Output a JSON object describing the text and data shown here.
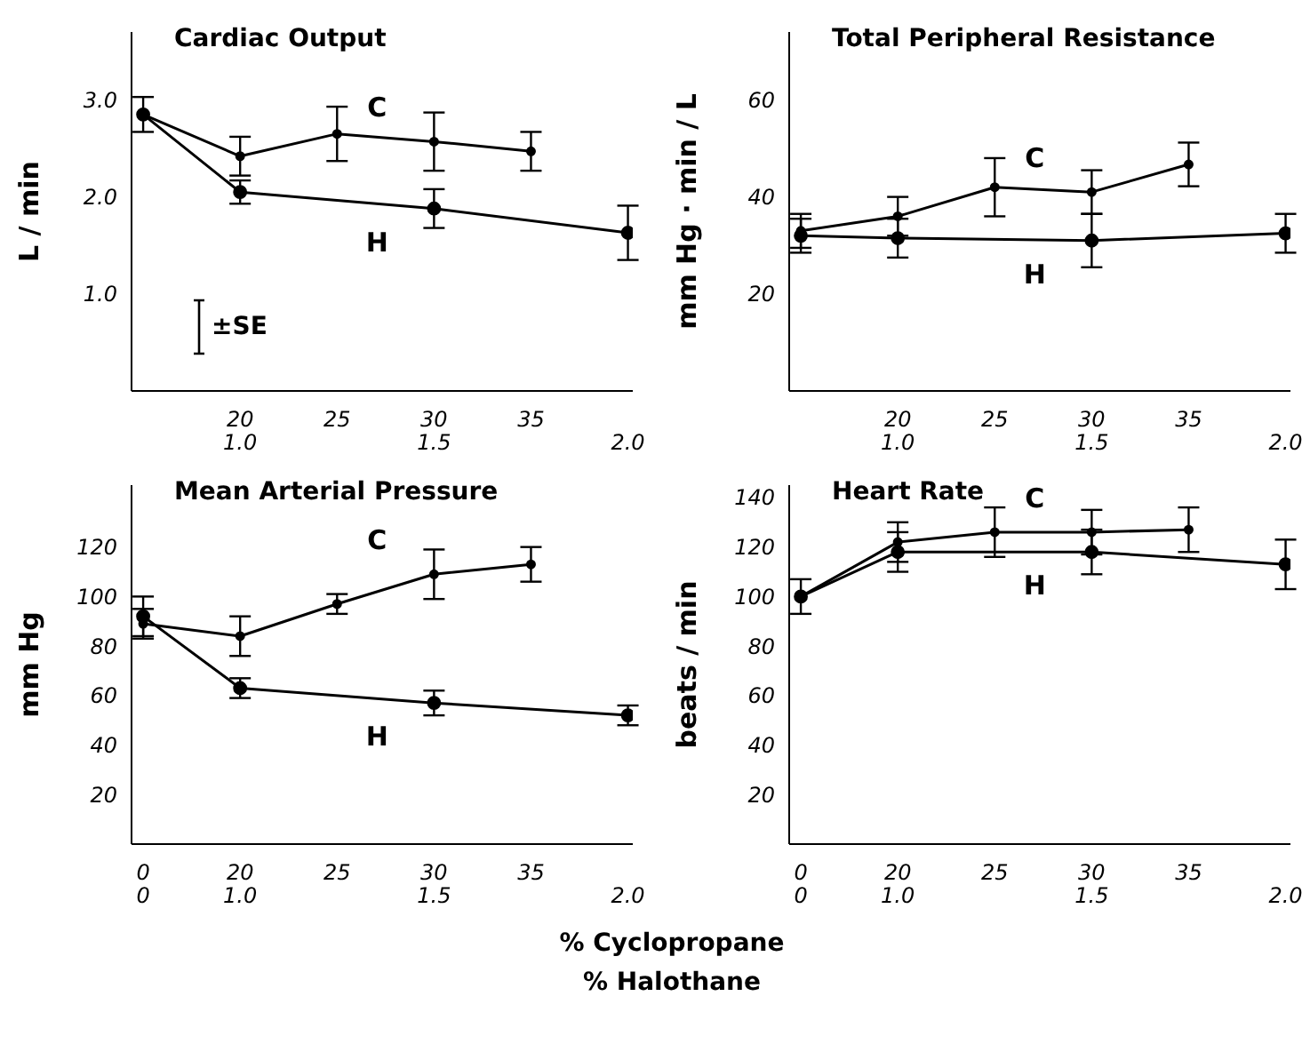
{
  "chart_data": [
    {
      "type": "line",
      "title": "Cardiac Output",
      "ylabel": "L / min",
      "categories": [
        null,
        "20\n1.0",
        "25",
        "30\n1.5",
        "35",
        "\n2.0"
      ],
      "ylim": [
        0,
        3.7
      ],
      "yticks": [
        {
          "value": 1,
          "label": "1.0"
        },
        {
          "value": 2,
          "label": "2.0"
        },
        {
          "value": 3,
          "label": "3.0"
        }
      ],
      "grid": false,
      "legend": false,
      "marker": "circle",
      "annotations": [
        "±SE"
      ],
      "series": [
        {
          "name": "C",
          "color": "#000000",
          "values": [
            2.85,
            2.42,
            2.65,
            2.57,
            2.47,
            null
          ],
          "errors": [
            0.18,
            0.2,
            0.28,
            0.3,
            0.2,
            null
          ]
        },
        {
          "name": "H",
          "color": "#000000",
          "values": [
            2.85,
            2.05,
            null,
            1.88,
            null,
            1.63
          ],
          "errors": [
            null,
            0.12,
            null,
            0.2,
            null,
            0.28
          ]
        }
      ]
    },
    {
      "type": "line",
      "title": "Total Peripheral Resistance",
      "ylabel": "mm Hg · min / L",
      "categories": [
        null,
        "20\n1.0",
        "25",
        "30\n1.5",
        "35",
        "\n2.0"
      ],
      "ylim": [
        0,
        74
      ],
      "yticks": [
        20,
        40,
        60
      ],
      "grid": false,
      "legend": false,
      "marker": "circle",
      "series": [
        {
          "name": "C",
          "color": "#000000",
          "values": [
            33,
            36,
            42,
            41,
            46.7,
            null
          ],
          "errors": [
            3.5,
            4,
            6,
            4.5,
            4.5,
            null
          ]
        },
        {
          "name": "H",
          "color": "#000000",
          "values": [
            32,
            31.5,
            null,
            31,
            null,
            32.5
          ],
          "errors": [
            3.5,
            4,
            null,
            5.5,
            null,
            4
          ]
        }
      ]
    },
    {
      "type": "line",
      "title": "Mean Arterial Pressure",
      "ylabel": "mm Hg",
      "xlabel": "% Cyclopropane\n% Halothane",
      "categories": [
        "0\n0",
        "20\n1.0",
        "25",
        "30\n1.5",
        "35",
        "\n2.0"
      ],
      "ylim": [
        0,
        145
      ],
      "yticks": [
        20,
        40,
        60,
        80,
        100,
        120
      ],
      "grid": false,
      "legend": false,
      "marker": "circle",
      "series": [
        {
          "name": "C",
          "color": "#000000",
          "values": [
            89,
            84,
            97,
            109,
            113,
            null
          ],
          "errors": [
            6,
            8,
            4,
            10,
            7,
            null
          ]
        },
        {
          "name": "H",
          "color": "#000000",
          "values": [
            92,
            63,
            null,
            57,
            null,
            52
          ],
          "errors": [
            8,
            4,
            null,
            5,
            null,
            4
          ]
        }
      ]
    },
    {
      "type": "line",
      "title": "Heart Rate",
      "ylabel": "beats / min",
      "categories": [
        "0\n0",
        "20\n1.0",
        "25",
        "30\n1.5",
        "35",
        "\n2.0"
      ],
      "ylim": [
        0,
        145
      ],
      "yticks": [
        20,
        40,
        60,
        80,
        100,
        120,
        140
      ],
      "grid": false,
      "legend": false,
      "marker": "circle",
      "series": [
        {
          "name": "C",
          "color": "#000000",
          "values": [
            100,
            122,
            126,
            126,
            127,
            null
          ],
          "errors": [
            7,
            8,
            10,
            9,
            9,
            null
          ]
        },
        {
          "name": "H",
          "color": "#000000",
          "values": [
            100,
            118,
            null,
            118,
            null,
            113
          ],
          "errors": [
            null,
            8,
            null,
            9,
            null,
            10
          ]
        }
      ]
    }
  ]
}
